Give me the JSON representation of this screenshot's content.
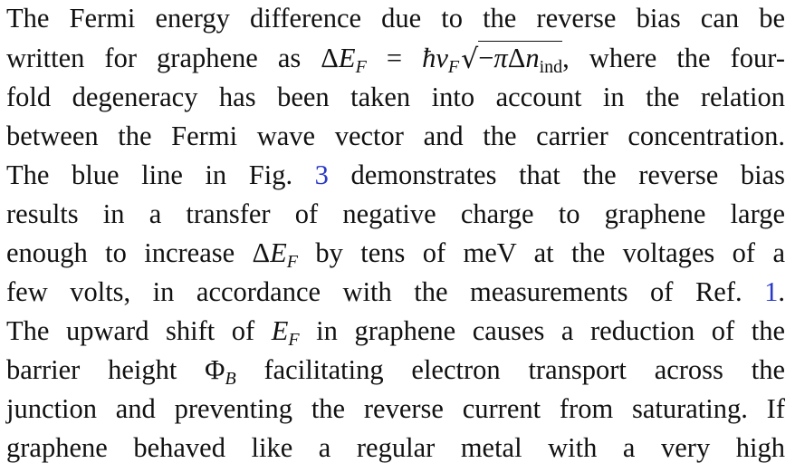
{
  "paragraph": {
    "line1": "The Fermi energy difference due to the reverse bias can be",
    "line2_a": "written for graphene as ",
    "line2_delta": "Δ",
    "line2_E": "E",
    "line2_F": "F",
    "line2_eq": " = ",
    "line2_hbar": "ħ",
    "line2_v": "v",
    "line2_vF": "F",
    "line2_rad": "√",
    "line2_minus": "−",
    "line2_pi": "π",
    "line2_Delta2": "Δ",
    "line2_n": "n",
    "line2_ind": "ind",
    "line2_b": ", where the four-",
    "line3": "fold degeneracy has been taken into account in the relation",
    "line4": "between the Fermi wave vector and the carrier concentration.",
    "line5_a": "The blue line in Fig. ",
    "line5_ref": "3",
    "line5_b": " demonstrates that the reverse bias",
    "line6": "results in a transfer of negative charge to graphene large",
    "line7_a": "enough to increase ",
    "line7_delta": "Δ",
    "line7_E": "E",
    "line7_F": "F",
    "line7_b": " by tens of meV at the voltages of a",
    "line8_a": "few volts, in accordance with the measurements of Ref. ",
    "line8_ref": "1",
    "line8_b": ".",
    "line9_a": "The upward shift of ",
    "line9_E": "E",
    "line9_F": "F",
    "line9_b": " in graphene causes a reduction of the",
    "line10_a": "barrier height ",
    "line10_Phi": "Φ",
    "line10_B": "B",
    "line10_b": " facilitating electron transport across the",
    "line11": "junction and preventing the reverse current from saturating. If",
    "line12": "graphene behaved like a regular metal with a very high"
  },
  "colors": {
    "text": "#111111",
    "link": "#2a39c7",
    "background": "#ffffff"
  }
}
